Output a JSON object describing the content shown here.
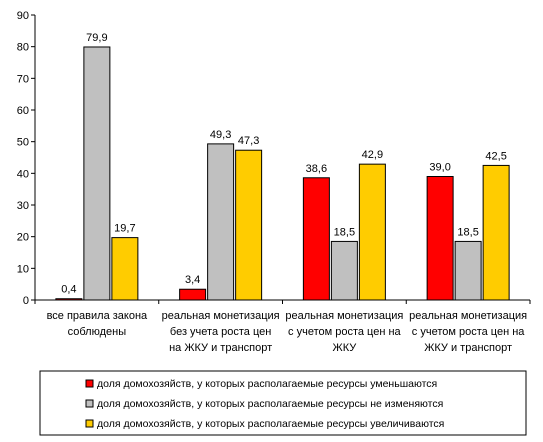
{
  "chart_data": {
    "type": "bar",
    "categories": [
      [
        "все правила закона",
        "соблюдены"
      ],
      [
        "реальная монетизация",
        "без учета роста цен",
        "на ЖКУ и транспорт"
      ],
      [
        "реальная монетизация",
        "с учетом роста цен на",
        "ЖКУ"
      ],
      [
        "реальная монетизация",
        "с учетом роста цен на",
        "ЖКУ и транспорт"
      ]
    ],
    "series": [
      {
        "name": "доля домохозяйств, у которых располагаемые ресурсы уменьшаются",
        "color": "#ff0000",
        "values": [
          0.4,
          3.4,
          38.6,
          39.0
        ],
        "labels": [
          "0,4",
          "3,4",
          "38,6",
          "39,0"
        ]
      },
      {
        "name": "доля домохозяйств, у которых располагаемые ресурсы не изменяются",
        "color": "#c0c0c0",
        "values": [
          79.9,
          49.3,
          18.5,
          18.5
        ],
        "labels": [
          "79,9",
          "49,3",
          "18,5",
          "18,5"
        ]
      },
      {
        "name": "доля домохозяйств, у которых  располагаемые ресурсы увеличиваются",
        "color": "#ffcc00",
        "values": [
          19.7,
          47.3,
          42.9,
          42.5
        ],
        "labels": [
          "19,7",
          "47,3",
          "42,9",
          "42,5"
        ]
      }
    ],
    "ylim": [
      0,
      90
    ],
    "yticks": [
      "0",
      "10",
      "20",
      "30",
      "40",
      "50",
      "60",
      "70",
      "80",
      "90"
    ],
    "grid": false,
    "legend_position": "bottom"
  }
}
